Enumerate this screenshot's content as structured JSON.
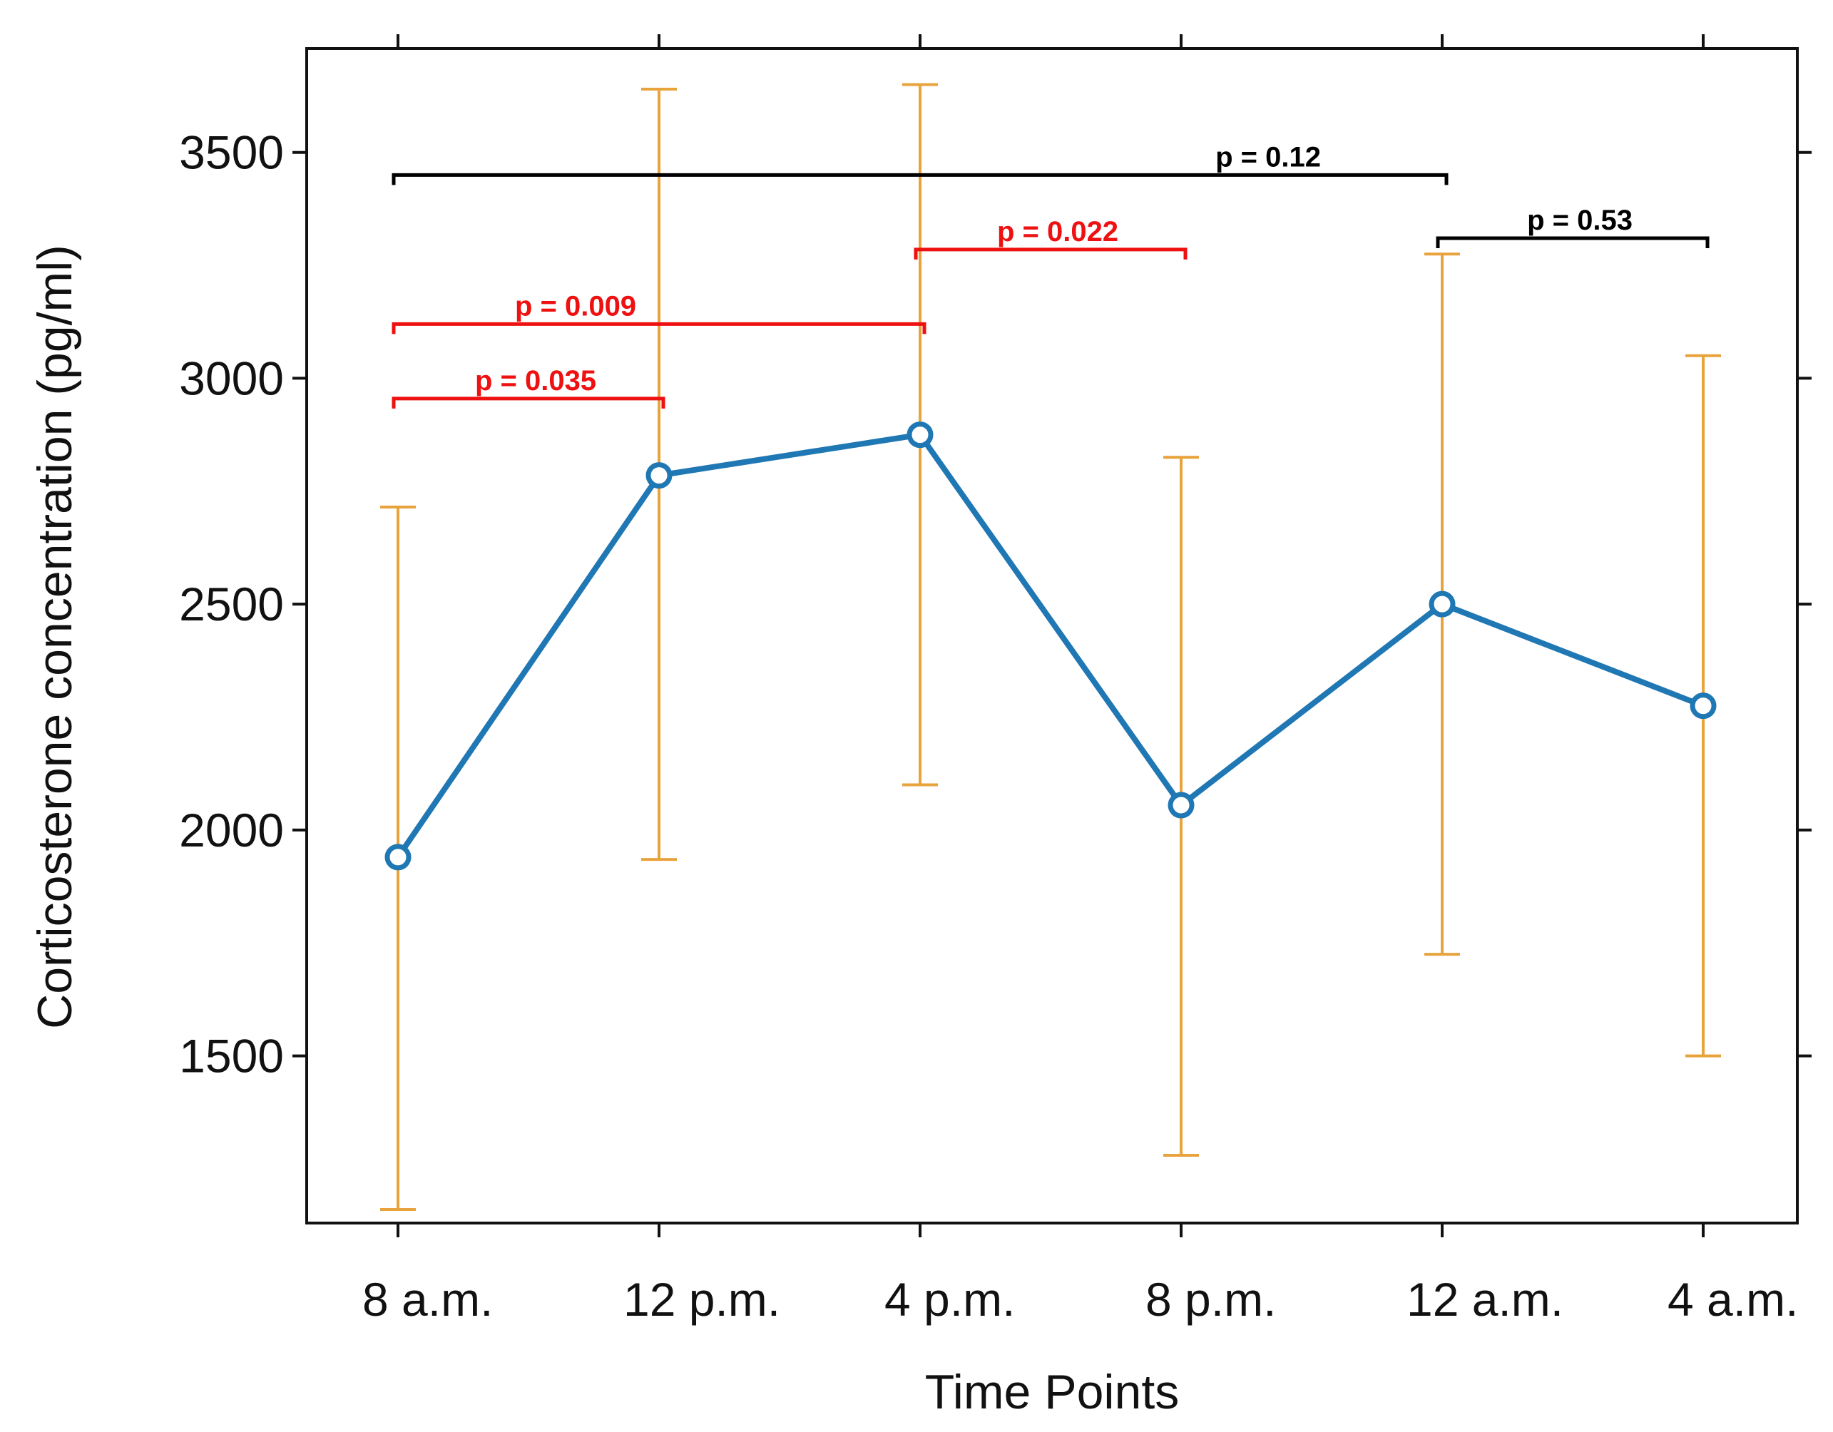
{
  "chart_data": {
    "type": "line",
    "xlabel": "Time Points",
    "ylabel": "Corticosterone concentration (pg/ml)",
    "categories": [
      "8 a.m.",
      "12 p.m.",
      "4 p.m.",
      "8 p.m.",
      "12 a.m.",
      "4 a.m."
    ],
    "ylim": [
      1130,
      3730
    ],
    "yticks": [
      1500,
      2000,
      2500,
      3000,
      3500
    ],
    "grid": false,
    "series": [
      {
        "name": "Corticosterone",
        "color": "#1f77b4",
        "values": [
          1940,
          2785,
          2875,
          2055,
          2500,
          2275
        ],
        "error_upper": [
          2715,
          3640,
          3650,
          2825,
          3275,
          3050
        ],
        "error_lower": [
          1160,
          1935,
          2100,
          1280,
          1725,
          1500
        ]
      }
    ],
    "error_bar_color": "#e8a33d",
    "significance_brackets": [
      {
        "from": "8 a.m.",
        "to": "12 a.m.",
        "label": "p = 0.12",
        "level": 3450,
        "color": "#000000",
        "label_anchor": "right"
      },
      {
        "from": "12 a.m.",
        "to": "4 a.m.",
        "label": "p = 0.53",
        "level": 3310,
        "color": "#000000",
        "label_anchor": "center"
      },
      {
        "from": "4 p.m.",
        "to": "8 p.m.",
        "label": "p = 0.022",
        "level": 3285,
        "color": "#ee1111",
        "label_anchor": "center"
      },
      {
        "from": "8 a.m.",
        "to": "4 p.m.",
        "label": "p = 0.009",
        "level": 3120,
        "color": "#ee1111",
        "label_anchor": "left"
      },
      {
        "from": "8 a.m.",
        "to": "12 p.m.",
        "label": "p = 0.035",
        "level": 2955,
        "color": "#ee1111",
        "label_anchor": "center"
      }
    ]
  }
}
